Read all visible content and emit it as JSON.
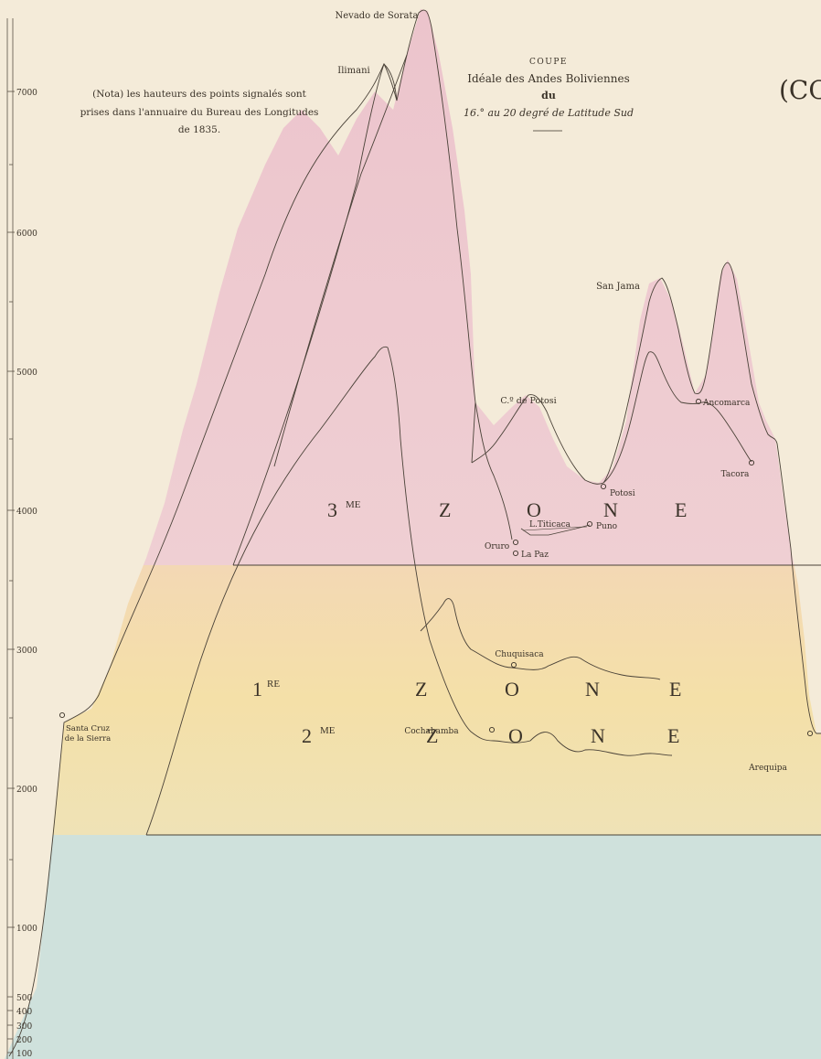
{
  "title": {
    "line1": "COUPE",
    "line2": "Idéale des Andes Boliviennes",
    "line3": "du",
    "line4": "16.° au 20 degré de Latitude Sud"
  },
  "note": {
    "line1": "(Nota) les hauteurs des points signalés sont",
    "line2": "prises dans l'annuaire du Bureau des Longitudes",
    "line3": "de 1835."
  },
  "edge_fragment": "(CO",
  "scale_ticks": [
    "7000",
    "6000",
    "5000",
    "4000",
    "3000",
    "2000",
    "1000",
    "500",
    "400",
    "300",
    "200",
    "100"
  ],
  "peaks": {
    "sorata": "Nevado de Sorata",
    "illimani": "Ilimani",
    "san_jama": "San Jama",
    "potosi_peak": "C.º de Potosi"
  },
  "places": {
    "ancomarca": "Ancomarca",
    "potosi": "Potosi",
    "tacora": "Tacora",
    "titicaca": "L.Titicaca",
    "puno": "Puno",
    "oruro": "Oruro",
    "la_paz": "La Paz",
    "chuquisaca": "Chuquisaca",
    "cochabamba": "Cochabamba",
    "arequipa": "Arequipa",
    "santa_cruz_1": "Santa Cruz",
    "santa_cruz_2": "de la Sierra"
  },
  "zones": {
    "z3": {
      "num": "3",
      "sup": "ME",
      "letters": [
        "Z",
        "O",
        "N",
        "E"
      ]
    },
    "z2": {
      "num": "2",
      "sup": "ME",
      "letters": [
        "Z",
        "O",
        "N",
        "E"
      ]
    },
    "z1": {
      "num": "1",
      "sup": "RE",
      "letters": [
        "Z",
        "O",
        "N",
        "E"
      ]
    }
  },
  "colors": {
    "paper": "#f4ebd9",
    "zone3": "#ecc6cc",
    "zone2": "#f2dcaa",
    "zone1": "#cfe1dc",
    "ink": "#3a3228"
  }
}
